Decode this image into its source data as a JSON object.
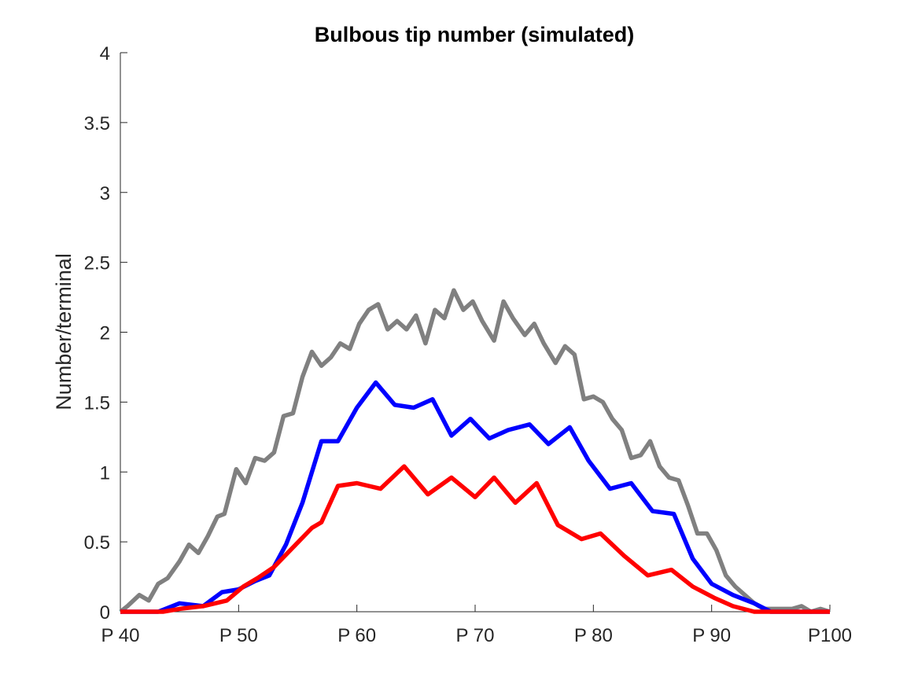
{
  "chart_data": {
    "type": "line",
    "title": "Bulbous tip number (simulated)",
    "xlabel": "",
    "ylabel": "Number/terminal",
    "xlim": [
      40,
      100
    ],
    "ylim": [
      0,
      4
    ],
    "x_ticks": [
      40,
      50,
      60,
      70,
      80,
      90,
      100
    ],
    "x_tick_labels": [
      "P 40",
      "P 50",
      "P 60",
      "P 70",
      "P 80",
      "P 90",
      "P100"
    ],
    "y_ticks": [
      0,
      0.5,
      1,
      1.5,
      2,
      2.5,
      3,
      3.5,
      4
    ],
    "y_tick_labels": [
      "0",
      "0.5",
      "1",
      "1.5",
      "2",
      "2.5",
      "3",
      "3.5",
      "4"
    ],
    "grid": false,
    "series": [
      {
        "color": "#808080",
        "points": [
          [
            40,
            0
          ],
          [
            40.6,
            0.04
          ],
          [
            41.6,
            0.12
          ],
          [
            42.4,
            0.08
          ],
          [
            43.2,
            0.2
          ],
          [
            44,
            0.24
          ],
          [
            45,
            0.36
          ],
          [
            45.8,
            0.48
          ],
          [
            46.6,
            0.42
          ],
          [
            47.4,
            0.54
          ],
          [
            48.2,
            0.68
          ],
          [
            48.8,
            0.7
          ],
          [
            49.8,
            1.02
          ],
          [
            50.6,
            0.92
          ],
          [
            51.4,
            1.1
          ],
          [
            52.2,
            1.08
          ],
          [
            53,
            1.14
          ],
          [
            53.8,
            1.4
          ],
          [
            54.6,
            1.42
          ],
          [
            55.4,
            1.68
          ],
          [
            56.2,
            1.86
          ],
          [
            57,
            1.76
          ],
          [
            57.8,
            1.82
          ],
          [
            58.6,
            1.92
          ],
          [
            59.4,
            1.88
          ],
          [
            60.2,
            2.06
          ],
          [
            61,
            2.16
          ],
          [
            61.8,
            2.2
          ],
          [
            62.6,
            2.02
          ],
          [
            63.4,
            2.08
          ],
          [
            64.2,
            2.02
          ],
          [
            65,
            2.12
          ],
          [
            65.8,
            1.92
          ],
          [
            66.6,
            2.16
          ],
          [
            67.4,
            2.1
          ],
          [
            68.2,
            2.3
          ],
          [
            69,
            2.16
          ],
          [
            69.8,
            2.22
          ],
          [
            70.6,
            2.08
          ],
          [
            71.6,
            1.94
          ],
          [
            72.4,
            2.22
          ],
          [
            73.2,
            2.1
          ],
          [
            74.2,
            1.98
          ],
          [
            75,
            2.06
          ],
          [
            75.8,
            1.92
          ],
          [
            76.8,
            1.78
          ],
          [
            77.6,
            1.9
          ],
          [
            78.4,
            1.84
          ],
          [
            79.2,
            1.52
          ],
          [
            80,
            1.54
          ],
          [
            80.8,
            1.5
          ],
          [
            81.6,
            1.38
          ],
          [
            82.4,
            1.3
          ],
          [
            83.2,
            1.1
          ],
          [
            84,
            1.12
          ],
          [
            84.8,
            1.22
          ],
          [
            85.6,
            1.04
          ],
          [
            86.4,
            0.96
          ],
          [
            87.2,
            0.94
          ],
          [
            88,
            0.76
          ],
          [
            88.8,
            0.56
          ],
          [
            89.6,
            0.56
          ],
          [
            90.4,
            0.44
          ],
          [
            91.2,
            0.26
          ],
          [
            92,
            0.18
          ],
          [
            92.8,
            0.12
          ],
          [
            93.6,
            0.06
          ],
          [
            94.4,
            0.02
          ],
          [
            95.2,
            0.02
          ],
          [
            96,
            0.02
          ],
          [
            96.8,
            0.02
          ],
          [
            97.6,
            0.04
          ],
          [
            98.4,
            0
          ],
          [
            99.2,
            0.02
          ],
          [
            100,
            0
          ]
        ]
      },
      {
        "color": "#0000ff",
        "points": [
          [
            40,
            0
          ],
          [
            41,
            0
          ],
          [
            43.2,
            0
          ],
          [
            45,
            0.06
          ],
          [
            47,
            0.04
          ],
          [
            48.6,
            0.14
          ],
          [
            50,
            0.16
          ],
          [
            51.4,
            0.22
          ],
          [
            52.6,
            0.26
          ],
          [
            54,
            0.48
          ],
          [
            55.4,
            0.78
          ],
          [
            57,
            1.22
          ],
          [
            58.4,
            1.22
          ],
          [
            60,
            1.46
          ],
          [
            61.6,
            1.64
          ],
          [
            63.2,
            1.48
          ],
          [
            64.8,
            1.46
          ],
          [
            66.4,
            1.52
          ],
          [
            68,
            1.26
          ],
          [
            69.6,
            1.38
          ],
          [
            71.2,
            1.24
          ],
          [
            72.8,
            1.3
          ],
          [
            74.6,
            1.34
          ],
          [
            76.2,
            1.2
          ],
          [
            78,
            1.32
          ],
          [
            79.6,
            1.08
          ],
          [
            81.4,
            0.88
          ],
          [
            83.2,
            0.92
          ],
          [
            85,
            0.72
          ],
          [
            86.8,
            0.7
          ],
          [
            88.4,
            0.38
          ],
          [
            90,
            0.2
          ],
          [
            91.8,
            0.12
          ],
          [
            93.6,
            0.06
          ],
          [
            95,
            0
          ],
          [
            100,
            0
          ]
        ]
      },
      {
        "color": "#ff0000",
        "points": [
          [
            40,
            0
          ],
          [
            41,
            0
          ],
          [
            43.6,
            0
          ],
          [
            45,
            0.02
          ],
          [
            47,
            0.04
          ],
          [
            49,
            0.08
          ],
          [
            50.4,
            0.18
          ],
          [
            51.6,
            0.24
          ],
          [
            53,
            0.32
          ],
          [
            54.6,
            0.46
          ],
          [
            56.2,
            0.6
          ],
          [
            57,
            0.64
          ],
          [
            58.4,
            0.9
          ],
          [
            60,
            0.92
          ],
          [
            62,
            0.88
          ],
          [
            64,
            1.04
          ],
          [
            66,
            0.84
          ],
          [
            68,
            0.96
          ],
          [
            70,
            0.82
          ],
          [
            71.6,
            0.96
          ],
          [
            73.4,
            0.78
          ],
          [
            75.2,
            0.92
          ],
          [
            77,
            0.62
          ],
          [
            79,
            0.52
          ],
          [
            80.6,
            0.56
          ],
          [
            82.6,
            0.4
          ],
          [
            84.6,
            0.26
          ],
          [
            86.6,
            0.3
          ],
          [
            88.4,
            0.18
          ],
          [
            90.2,
            0.1
          ],
          [
            91.8,
            0.04
          ],
          [
            93.6,
            0
          ],
          [
            100,
            0
          ]
        ]
      }
    ]
  }
}
